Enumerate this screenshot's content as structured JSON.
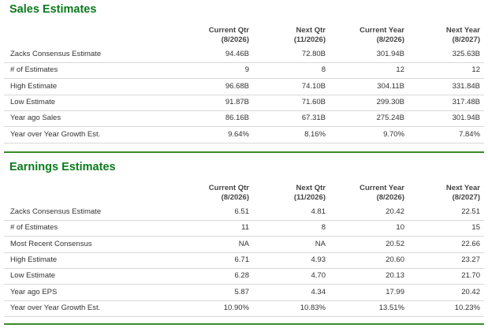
{
  "sales": {
    "title": "Sales Estimates",
    "headers": [
      {
        "line1": "Current Qtr",
        "line2": "(8/2026)"
      },
      {
        "line1": "Next Qtr",
        "line2": "(11/2026)"
      },
      {
        "line1": "Current Year",
        "line2": "(8/2026)"
      },
      {
        "line1": "Next Year",
        "line2": "(8/2027)"
      }
    ],
    "rows": [
      {
        "label": "Zacks Consensus Estimate",
        "values": [
          "94.46B",
          "72.80B",
          "301.94B",
          "325.63B"
        ]
      },
      {
        "label": "# of Estimates",
        "values": [
          "9",
          "8",
          "12",
          "12"
        ]
      },
      {
        "label": "High Estimate",
        "values": [
          "96.68B",
          "74.10B",
          "304.11B",
          "331.84B"
        ]
      },
      {
        "label": "Low Estimate",
        "values": [
          "91.87B",
          "71.60B",
          "299.30B",
          "317.48B"
        ]
      },
      {
        "label": "Year ago Sales",
        "values": [
          "86.16B",
          "67.31B",
          "275.24B",
          "301.94B"
        ]
      },
      {
        "label": "Year over Year Growth Est.",
        "values": [
          "9.64%",
          "8.16%",
          "9.70%",
          "7.84%"
        ]
      }
    ]
  },
  "earnings": {
    "title": "Earnings Estimates",
    "headers": [
      {
        "line1": "Current Qtr",
        "line2": "(8/2026)"
      },
      {
        "line1": "Next Qtr",
        "line2": "(11/2026)"
      },
      {
        "line1": "Current Year",
        "line2": "(8/2026)"
      },
      {
        "line1": "Next Year",
        "line2": "(8/2027)"
      }
    ],
    "rows": [
      {
        "label": "Zacks Consensus Estimate",
        "values": [
          "6.51",
          "4.81",
          "20.42",
          "22.51"
        ]
      },
      {
        "label": "# of Estimates",
        "values": [
          "11",
          "8",
          "10",
          "15"
        ]
      },
      {
        "label": "Most Recent Consensus",
        "values": [
          "NA",
          "NA",
          "20.52",
          "22.66"
        ]
      },
      {
        "label": "High Estimate",
        "values": [
          "6.71",
          "4.93",
          "20.60",
          "23.27"
        ]
      },
      {
        "label": "Low Estimate",
        "values": [
          "6.28",
          "4.70",
          "20.13",
          "21.70"
        ]
      },
      {
        "label": "Year ago EPS",
        "values": [
          "5.87",
          "4.34",
          "17.99",
          "20.42"
        ]
      },
      {
        "label": "Year over Year Growth Est.",
        "values": [
          "10.90%",
          "10.83%",
          "13.51%",
          "10.23%"
        ]
      }
    ]
  }
}
